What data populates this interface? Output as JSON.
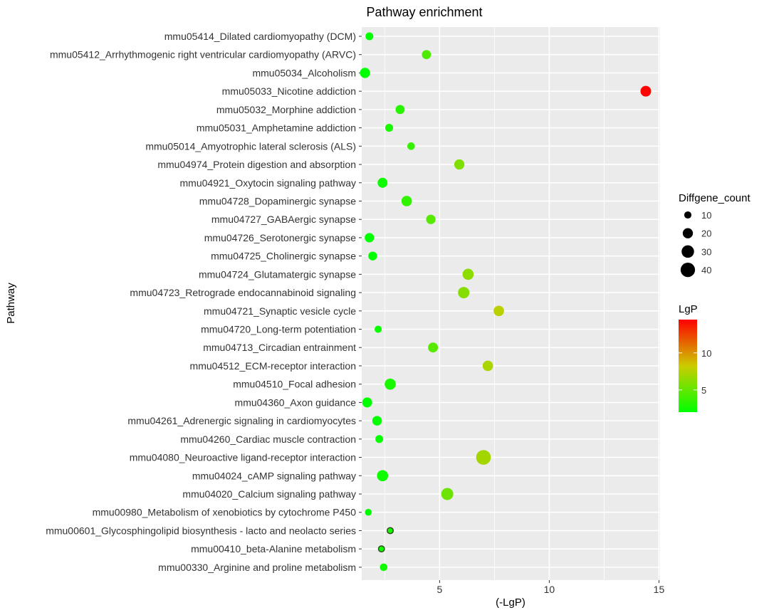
{
  "chart_data": {
    "type": "scatter",
    "title": "Pathway enrichment",
    "xlabel": "(-LgP)",
    "ylabel": "Pathway",
    "xlim": [
      1.45,
      15.05
    ],
    "x_ticks": [
      5,
      10,
      15
    ],
    "grid": true,
    "legend_size_title": "Diffgene_count",
    "legend_size_values": [
      10,
      20,
      30,
      40
    ],
    "legend_color_title": "LgP",
    "legend_color_range": [
      2,
      14.5
    ],
    "legend_color_ticks": [
      5,
      10
    ],
    "colors": {
      "low": "#00ff00",
      "mid": "#cccc00",
      "high": "#ff0000",
      "panel": "#ebebeb",
      "grid": "#ffffff",
      "text": "#333333"
    },
    "points": [
      {
        "label": "mmu05414_Dilated cardiomyopathy (DCM)",
        "x": 1.8,
        "count": 12
      },
      {
        "label": "mmu05412_Arrhythmogenic right ventricular cardiomyopathy (ARVC)",
        "x": 4.4,
        "count": 16
      },
      {
        "label": "mmu05034_Alcoholism",
        "x": 1.6,
        "count": 20
      },
      {
        "label": "mmu05033_Nicotine addiction",
        "x": 14.4,
        "count": 22
      },
      {
        "label": "mmu05032_Morphine addiction",
        "x": 3.2,
        "count": 16
      },
      {
        "label": "mmu05031_Amphetamine addiction",
        "x": 2.7,
        "count": 12
      },
      {
        "label": "mmu05014_Amyotrophic lateral sclerosis (ALS)",
        "x": 3.7,
        "count": 11
      },
      {
        "label": "mmu04974_Protein digestion and absorption",
        "x": 5.9,
        "count": 20
      },
      {
        "label": "mmu04921_Oxytocin signaling pathway",
        "x": 2.4,
        "count": 19
      },
      {
        "label": "mmu04728_Dopaminergic synapse",
        "x": 3.5,
        "count": 21
      },
      {
        "label": "mmu04727_GABAergic synapse",
        "x": 4.6,
        "count": 17
      },
      {
        "label": "mmu04726_Serotonergic synapse",
        "x": 1.8,
        "count": 17
      },
      {
        "label": "mmu04725_Cholinergic synapse",
        "x": 1.95,
        "count": 15
      },
      {
        "label": "mmu04724_Glutamatergic synapse",
        "x": 6.3,
        "count": 24
      },
      {
        "label": "mmu04723_Retrograde endocannabinoid signaling",
        "x": 6.1,
        "count": 25
      },
      {
        "label": "mmu04721_Synaptic vesicle cycle",
        "x": 7.7,
        "count": 21
      },
      {
        "label": "mmu04720_Long-term potentiation",
        "x": 2.2,
        "count": 10
      },
      {
        "label": "mmu04713_Circadian entrainment",
        "x": 4.7,
        "count": 19
      },
      {
        "label": "mmu04512_ECM-receptor interaction",
        "x": 7.2,
        "count": 21
      },
      {
        "label": "mmu04510_Focal adhesion",
        "x": 2.75,
        "count": 24
      },
      {
        "label": "mmu04360_Axon guidance",
        "x": 1.7,
        "count": 19
      },
      {
        "label": "mmu04261_Adrenergic signaling in cardiomyocytes",
        "x": 2.15,
        "count": 18
      },
      {
        "label": "mmu04260_Cardiac muscle contraction",
        "x": 2.25,
        "count": 12
      },
      {
        "label": "mmu04080_Neuroactive ligand-receptor interaction",
        "x": 7.0,
        "count": 42
      },
      {
        "label": "mmu04024_cAMP signaling pathway",
        "x": 2.4,
        "count": 24
      },
      {
        "label": "mmu04020_Calcium signaling pathway",
        "x": 5.35,
        "count": 28
      },
      {
        "label": "mmu00980_Metabolism of xenobiotics by cytochrome P450",
        "x": 1.75,
        "count": 9
      },
      {
        "label": "mmu00601_Glycosphingolipid biosynthesis - lacto and neolacto series",
        "x": 2.75,
        "count": 7
      },
      {
        "label": "mmu00410_beta-Alanine metabolism",
        "x": 2.35,
        "count": 7
      },
      {
        "label": "mmu00330_Arginine and proline metabolism",
        "x": 2.45,
        "count": 11
      }
    ]
  }
}
